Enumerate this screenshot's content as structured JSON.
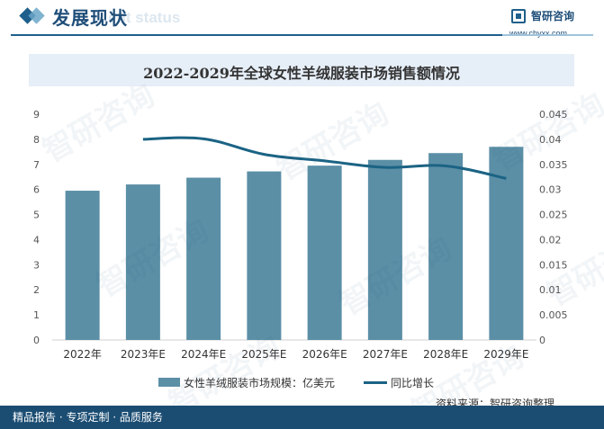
{
  "header": {
    "title": "发展现状",
    "ghost_text": "ent status",
    "brand_name": "智研咨询",
    "brand_url": "www.chyxx.com"
  },
  "watermark_text": "智研咨询",
  "chart_data": {
    "type": "bar",
    "title": "2022-2029年全球女性羊绒服装市场销售额情况",
    "categories": [
      "2022年",
      "2023年E",
      "2024年E",
      "2025年E",
      "2026年E",
      "2027年E",
      "2028年E",
      "2029年E"
    ],
    "series": [
      {
        "name": "女性羊绒服装市场规模：亿美元",
        "type": "bar",
        "axis": "left",
        "color": "#5b8fa6",
        "values": [
          5.95,
          6.2,
          6.47,
          6.72,
          6.95,
          7.18,
          7.45,
          7.7
        ]
      },
      {
        "name": "同比增长",
        "type": "line",
        "axis": "right",
        "color": "#1b6384",
        "values": [
          null,
          0.04,
          0.0401,
          0.037,
          0.0357,
          0.0344,
          0.0347,
          0.0322
        ]
      }
    ],
    "ylim_left": [
      0,
      9
    ],
    "yticks_left": [
      "0",
      "1",
      "2",
      "3",
      "4",
      "5",
      "6",
      "7",
      "8",
      "9"
    ],
    "ylim_right": [
      0,
      0.045
    ],
    "yticks_right": [
      "0",
      "0.005",
      "0.01",
      "0.015",
      "0.02",
      "0.025",
      "0.03",
      "0.035",
      "0.04",
      "0.045"
    ],
    "grid": false,
    "legend_position": "bottom"
  },
  "source": "资料来源：智研咨询整理",
  "footer": "精品报告 · 专项定制 · 品质服务"
}
